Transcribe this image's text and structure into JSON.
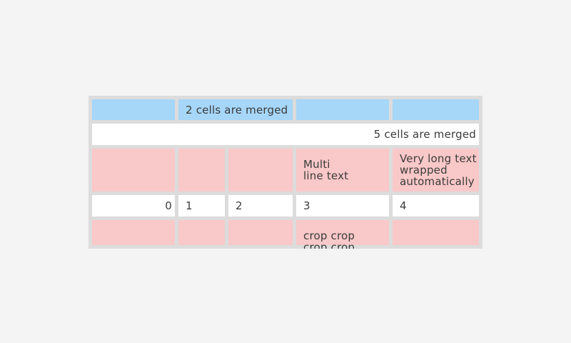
{
  "page": {
    "background_color": "#f4f4f4"
  },
  "table": {
    "background_color": "#dcdcdc",
    "cell_colors": {
      "header_blue": "#a6d6f8",
      "highlight_pink": "#f9c8c8",
      "default_white": "#ffffff"
    },
    "text_color": "#3b3b3b",
    "rows": [
      {
        "style": "blue",
        "merged_cell_text": "2 cells are merged",
        "merged_span": 2
      },
      {
        "style": "white",
        "merged_cell_text": "5 cells are merged",
        "merged_span": 5
      },
      {
        "style": "pink",
        "cell3_lines": [
          "Multi",
          "line text"
        ],
        "cell4_lines": [
          "Very long text",
          "wrapped",
          "automatically"
        ]
      },
      {
        "style": "white",
        "cells": [
          "0",
          "1",
          "2",
          "3",
          "4"
        ]
      },
      {
        "style": "pink",
        "cell3_lines": [
          "crop crop",
          "crop crop"
        ]
      }
    ]
  }
}
